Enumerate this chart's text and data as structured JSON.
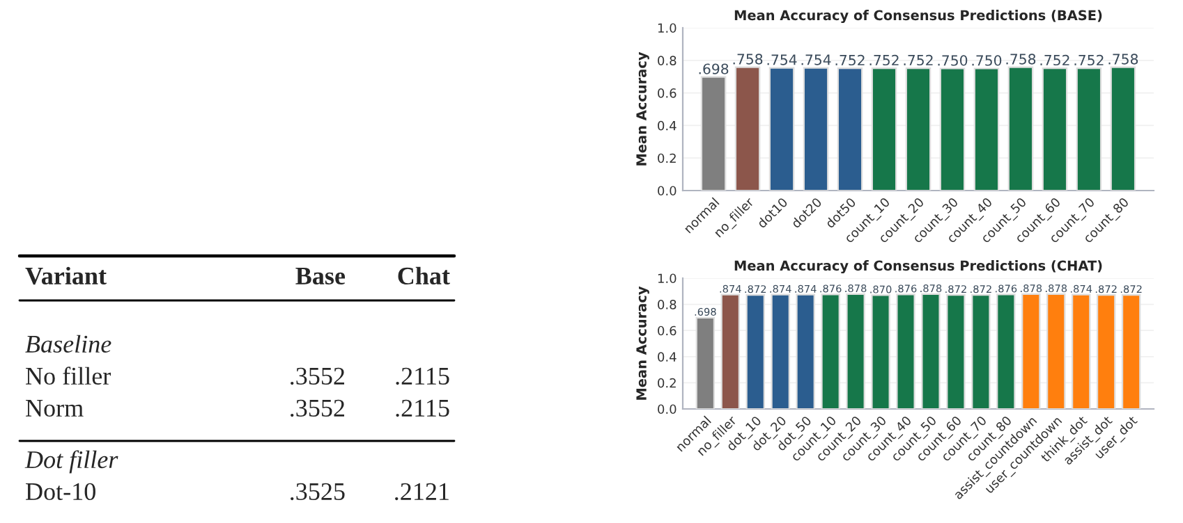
{
  "chart_data": [
    {
      "type": "other",
      "annotations": [
        [
          "Variant",
          "Base",
          "Chat"
        ],
        [
          "Baseline"
        ],
        [
          "No filler",
          ".3552",
          ".2115"
        ],
        [
          "Norm",
          ".3552",
          ".2115"
        ],
        [
          "Dot filler"
        ],
        [
          "Dot-10",
          ".3525",
          ".2121"
        ]
      ]
    },
    {
      "type": "bar",
      "title": "Mean Accuracy of Consensus Predictions (BASE)",
      "ylabel": "Mean Accuracy",
      "categories": [
        "normal",
        "no_filler",
        "dot10",
        "dot20",
        "dot50",
        "count_10",
        "count_20",
        "count_30",
        "count_40",
        "count_50",
        "count_60",
        "count_70",
        "count_80"
      ],
      "values": [
        0.698,
        0.758,
        0.754,
        0.754,
        0.752,
        0.752,
        0.752,
        0.75,
        0.75,
        0.758,
        0.752,
        0.752,
        0.758
      ],
      "value_labels": [
        ".698",
        ".758",
        ".754",
        ".754",
        ".752",
        ".752",
        ".752",
        ".750",
        ".750",
        ".758",
        ".752",
        ".752",
        ".758"
      ],
      "colors": [
        "#7f7f7f",
        "#8c564b",
        "#2b5d8f",
        "#2b5d8f",
        "#2b5d8f",
        "#16774a",
        "#16774a",
        "#16774a",
        "#16774a",
        "#16774a",
        "#16774a",
        "#16774a",
        "#16774a"
      ],
      "ylim": [
        0,
        1
      ],
      "yticks": [
        {
          "value": 0,
          "label": "0.0"
        },
        {
          "value": 0.2,
          "label": "0.2"
        },
        {
          "value": 0.4,
          "label": "0.4"
        },
        {
          "value": 0.6,
          "label": "0.6"
        },
        {
          "value": 0.8,
          "label": "0.8"
        },
        {
          "value": 1,
          "label": "1.0"
        }
      ],
      "grid": "y"
    },
    {
      "type": "bar",
      "title": "Mean Accuracy of Consensus Predictions (CHAT)",
      "ylabel": "Mean Accuracy",
      "categories": [
        "normal",
        "no_filler",
        "dot_10",
        "dot_20",
        "dot_50",
        "count_10",
        "count_20",
        "count_30",
        "count_40",
        "count_50",
        "count_60",
        "count_70",
        "count_80",
        "assist_countdown",
        "user_countdown",
        "think_dot",
        "assist_dot",
        "user_dot"
      ],
      "values": [
        0.698,
        0.874,
        0.872,
        0.874,
        0.874,
        0.876,
        0.878,
        0.87,
        0.876,
        0.878,
        0.872,
        0.872,
        0.876,
        0.878,
        0.878,
        0.874,
        0.872,
        0.872
      ],
      "value_labels": [
        ".698",
        ".874",
        ".872",
        ".874",
        ".874",
        ".876",
        ".878",
        ".870",
        ".876",
        ".878",
        ".872",
        ".872",
        ".876",
        ".878",
        ".878",
        ".874",
        ".872",
        ".872"
      ],
      "colors": [
        "#7f7f7f",
        "#8c564b",
        "#2b5d8f",
        "#2b5d8f",
        "#2b5d8f",
        "#16774a",
        "#16774a",
        "#16774a",
        "#16774a",
        "#16774a",
        "#16774a",
        "#16774a",
        "#16774a",
        "#ff7f0e",
        "#ff7f0e",
        "#ff7f0e",
        "#ff7f0e",
        "#ff7f0e"
      ],
      "ylim": [
        0,
        1
      ],
      "yticks": [
        {
          "value": 0,
          "label": "0.0"
        },
        {
          "value": 0.2,
          "label": "0.2"
        },
        {
          "value": 0.4,
          "label": "0.4"
        },
        {
          "value": 0.6,
          "label": "0.6"
        },
        {
          "value": 0.8,
          "label": "0.8"
        },
        {
          "value": 1,
          "label": "1.0"
        }
      ],
      "grid": "y"
    }
  ]
}
